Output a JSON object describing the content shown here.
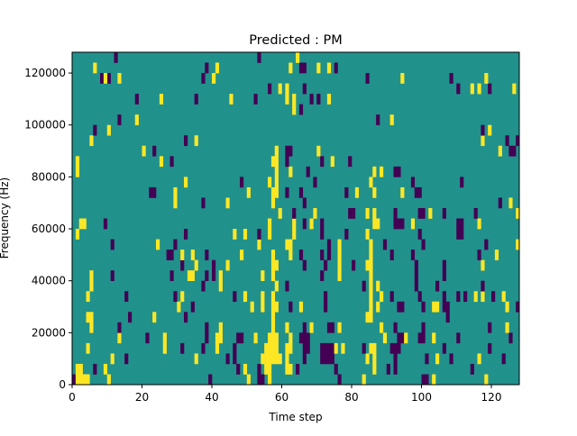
{
  "chart_data": {
    "type": "heatmap",
    "title": "Predicted : PM",
    "xlabel": "Time step",
    "ylabel": "Frequency (Hz)",
    "xlim": [
      0,
      128
    ],
    "ylim": [
      0,
      128000
    ],
    "freq_bin_hz": 4000,
    "n_time_steps": 128,
    "n_freq_bins": 32,
    "xticks": [
      "0",
      "20",
      "40",
      "60",
      "80",
      "100",
      "120"
    ],
    "xtick_values": [
      0,
      20,
      40,
      60,
      80,
      100,
      120
    ],
    "yticks": [
      "0",
      "20000",
      "40000",
      "60000",
      "80000",
      "100000",
      "120000"
    ],
    "ytick_values": [
      0,
      20000,
      40000,
      60000,
      80000,
      100000,
      120000
    ],
    "colormap": {
      "-1": "#440154",
      "0": "#21918c",
      "1": "#fde725"
    },
    "background_value": 0,
    "rows": [
      {
        "neg": [
          0,
          39,
          53,
          54,
          76,
          100,
          101
        ],
        "pos": [
          1,
          2,
          3,
          4,
          10,
          50,
          56,
          83,
          103,
          118
        ]
      },
      {
        "neg": [
          6,
          47,
          53,
          64,
          75,
          90,
          92,
          114
        ],
        "pos": [
          1,
          2,
          9,
          49,
          55,
          56,
          61,
          62,
          86
        ]
      },
      {
        "neg": [
          15,
          44,
          46,
          66,
          71,
          72,
          73,
          74,
          92,
          101,
          108,
          123
        ],
        "pos": [
          11,
          35,
          54,
          55,
          56,
          57,
          58,
          59,
          61,
          84,
          86,
          104,
          116
        ]
      },
      {
        "neg": [
          31,
          37,
          46,
          66,
          67,
          71,
          72,
          73,
          74,
          83,
          91,
          92,
          93,
          106,
          119
        ],
        "pos": [
          4,
          26,
          41,
          55,
          56,
          57,
          58,
          61,
          62,
          75,
          77,
          85,
          86
        ]
      },
      {
        "neg": [
          21,
          38,
          47,
          48,
          65,
          66,
          67,
          93,
          94,
          99,
          100,
          110,
          125
        ],
        "pos": [
          13,
          26,
          41,
          42,
          52,
          56,
          57,
          58,
          62,
          89,
          95,
          103
        ]
      },
      {
        "neg": [
          13,
          38,
          66,
          73,
          74,
          92,
          100,
          119
        ],
        "pos": [
          5,
          42,
          57,
          61,
          68,
          76,
          88,
          124
        ]
      },
      {
        "neg": [
          16,
          32,
          107
        ],
        "pos": [
          4,
          5,
          23,
          57,
          84,
          85
        ]
      },
      {
        "neg": [
          34,
          62,
          72,
          93,
          94,
          100,
          106,
          107,
          127
        ],
        "pos": [
          30,
          51,
          54,
          57,
          58,
          65,
          85,
          87,
          103,
          104,
          124
        ]
      },
      {
        "neg": [
          15,
          29,
          46,
          72,
          91,
          99,
          106,
          110,
          112,
          120
        ],
        "pos": [
          4,
          31,
          49,
          54,
          57,
          85,
          88,
          115,
          117,
          123
        ]
      },
      {
        "neg": [
          37,
          61,
          83,
          98,
          104,
          117
        ],
        "pos": [
          5,
          42,
          58,
          85,
          87
        ]
      },
      {
        "neg": [
          11,
          28,
          38,
          40,
          71,
          98,
          106
        ],
        "pos": [
          5,
          33,
          34,
          42,
          54,
          57,
          76,
          85
        ]
      },
      {
        "neg": [
          31,
          40,
          66,
          72,
          80,
          98,
          106
        ],
        "pos": [
          35,
          44,
          57,
          58,
          76,
          84,
          85,
          117
        ]
      },
      {
        "neg": [
          27,
          28,
          38,
          65,
          71,
          73,
          91,
          97,
          116
        ],
        "pos": [
          31,
          34,
          48,
          57,
          62,
          76,
          85,
          121
        ]
      },
      {
        "neg": [
          11,
          29,
          73,
          89,
          100,
          118
        ],
        "pos": [
          24,
          53,
          61,
          62,
          76,
          85,
          127
        ]
      },
      {
        "neg": [
          32,
          53,
          71,
          78,
          99,
          110,
          111
        ],
        "pos": [
          1,
          46,
          49,
          56,
          63,
          84
        ]
      },
      {
        "neg": [
          9,
          66,
          71,
          92,
          93,
          94,
          110,
          111
        ],
        "pos": [
          2,
          3,
          56,
          63,
          68,
          86,
          87,
          97,
          116
        ]
      },
      {
        "neg": [
          63,
          79,
          80,
          92,
          99,
          100,
          106,
          115
        ],
        "pos": [
          59,
          69,
          84,
          86,
          102,
          127
        ]
      },
      {
        "neg": [
          37,
          66,
          122
        ],
        "pos": [
          29,
          44,
          57,
          125
        ]
      },
      {
        "neg": [
          22,
          23,
          61,
          65,
          78,
          98,
          99
        ],
        "pos": [
          29,
          50,
          57,
          58,
          81,
          86,
          94
        ]
      },
      {
        "neg": [
          48,
          69,
          97,
          111
        ],
        "pos": [
          32,
          56,
          58,
          85
        ]
      },
      {
        "neg": [
          67,
          92,
          93
        ],
        "pos": [
          1,
          58,
          62,
          86,
          88
        ]
      },
      {
        "neg": [
          28,
          61,
          71,
          79
        ],
        "pos": [
          1,
          25,
          57,
          58,
          74
        ]
      },
      {
        "neg": [
          23,
          61,
          62,
          125,
          126
        ],
        "pos": [
          20,
          58,
          70,
          122
        ]
      },
      {
        "neg": [
          32,
          124,
          127
        ],
        "pos": [
          5,
          35,
          117
        ]
      },
      {
        "neg": [
          6,
          117
        ],
        "pos": [
          10,
          119
        ]
      },
      {
        "neg": [
          13,
          87
        ],
        "pos": [
          18,
          91
        ]
      },
      {
        "neg": [
          65
        ],
        "pos": [
          63
        ]
      },
      {
        "neg": [
          18,
          35,
          52,
          68,
          70
        ],
        "pos": [
          25,
          45,
          61,
          63,
          73
        ]
      },
      {
        "neg": [
          56,
          66,
          110,
          119
        ],
        "pos": [
          59,
          61,
          114,
          116,
          126
        ]
      },
      {
        "neg": [
          8,
          10,
          37,
          84,
          108
        ],
        "pos": [
          9,
          13,
          40,
          94,
          118
        ]
      },
      {
        "neg": [
          38,
          65,
          66,
          75
        ],
        "pos": [
          6,
          41,
          62,
          70,
          73
        ]
      },
      {
        "neg": [
          12,
          53
        ],
        "pos": [
          64
        ]
      }
    ]
  }
}
